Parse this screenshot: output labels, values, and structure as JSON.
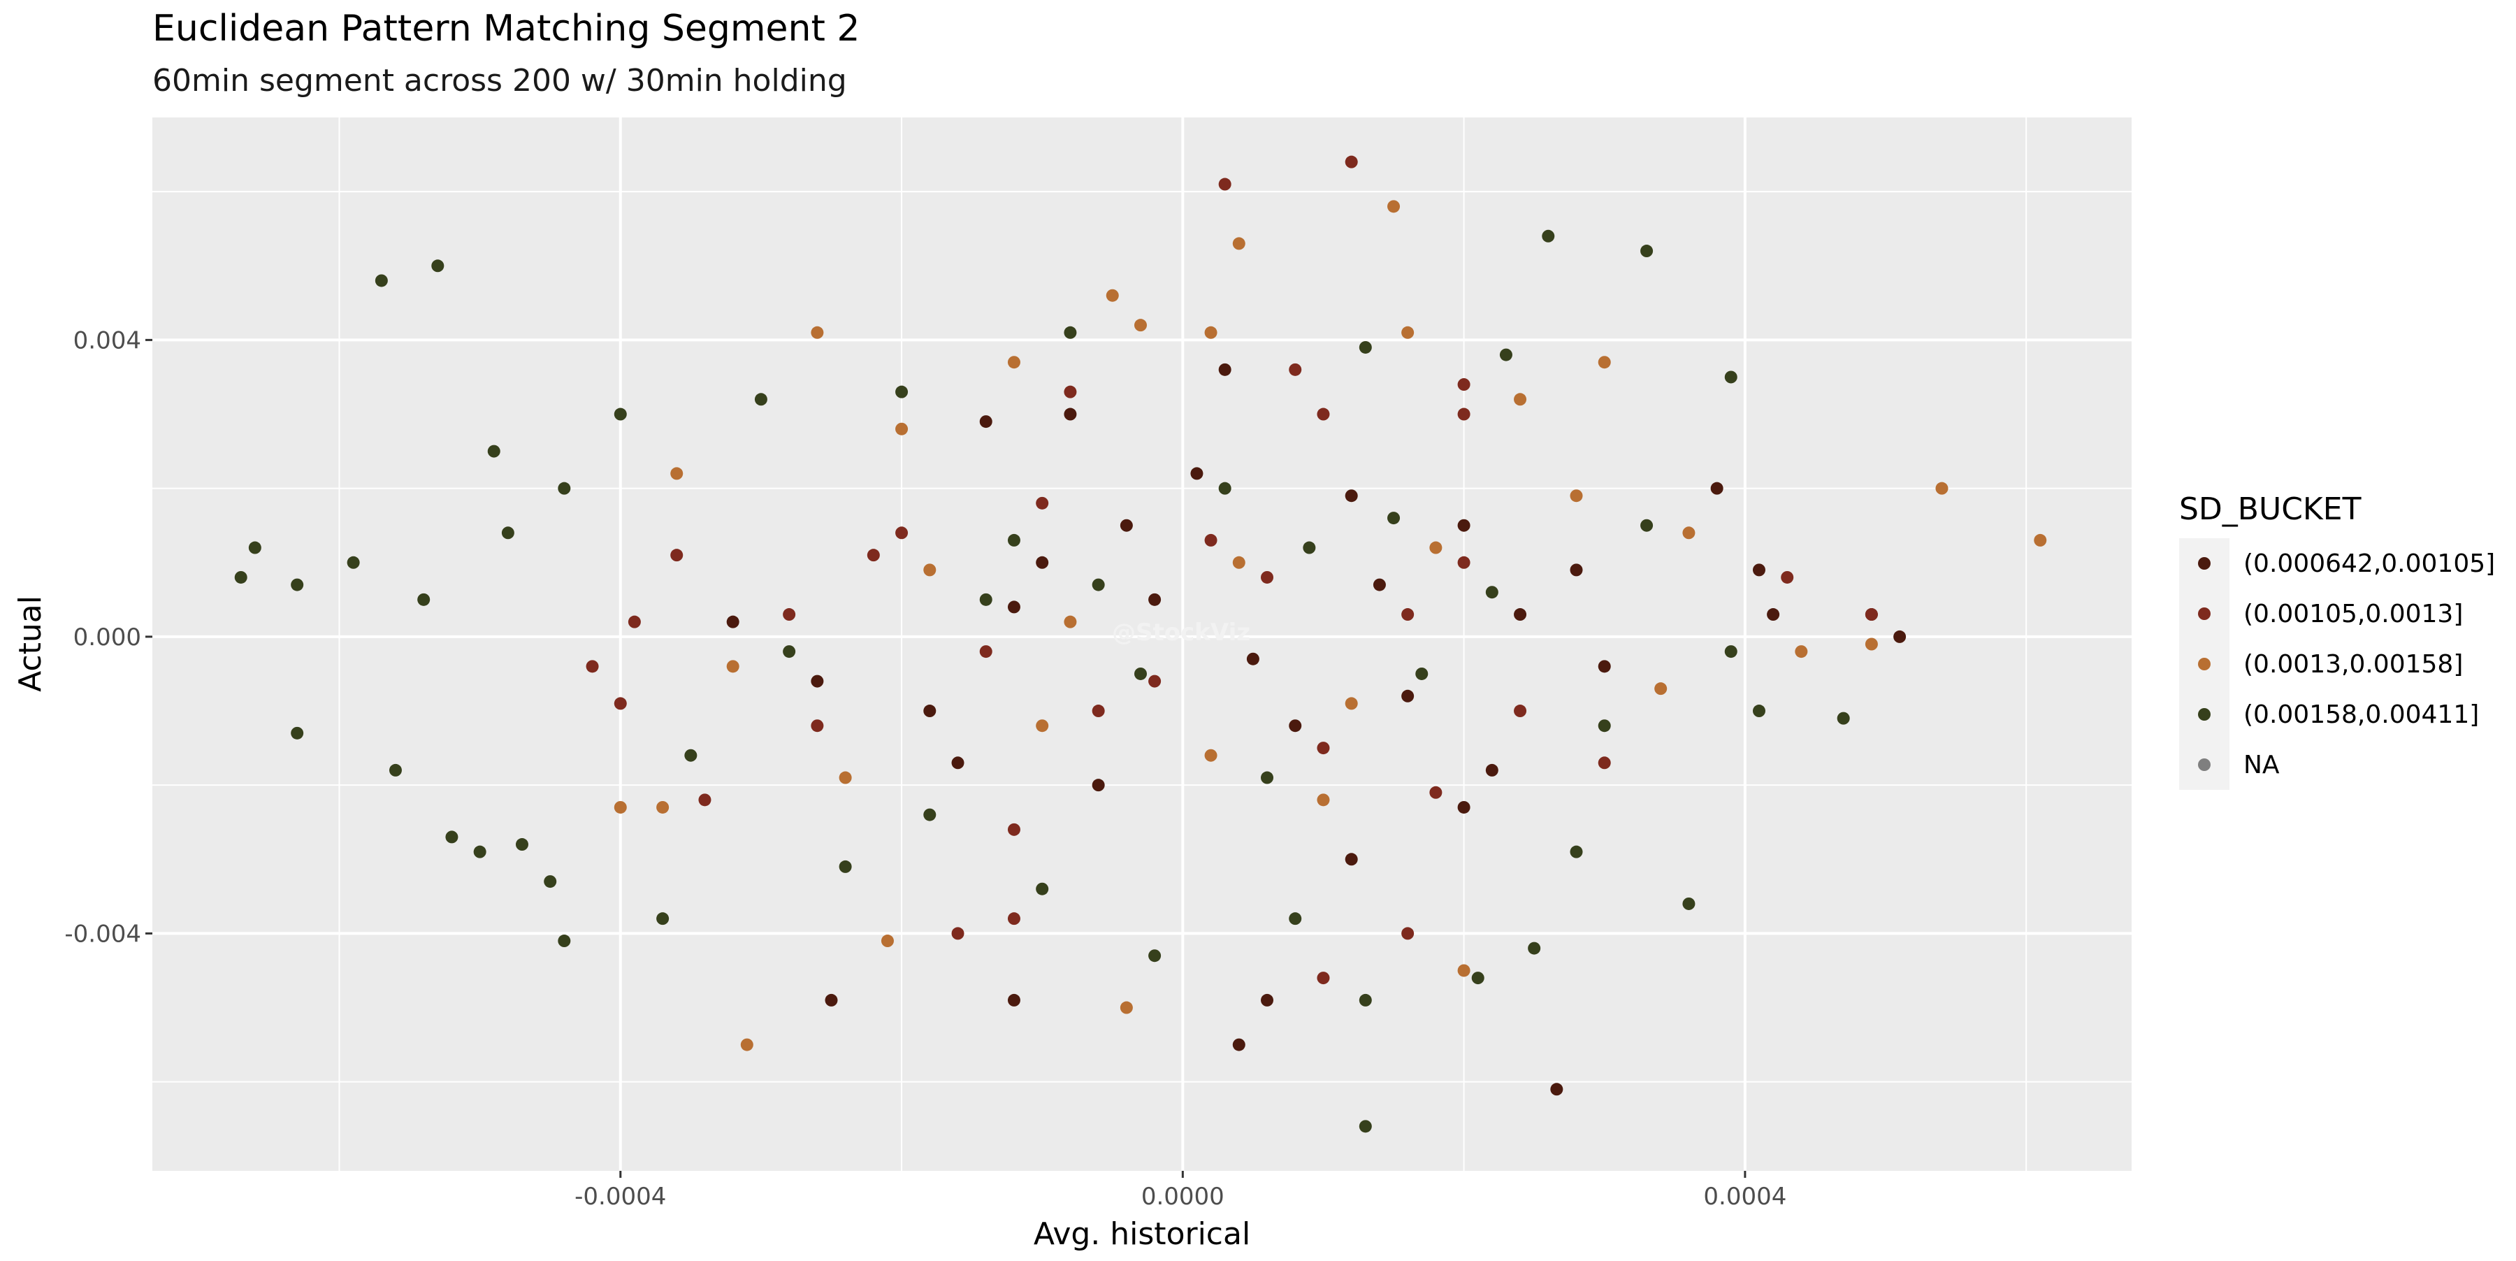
{
  "chart_data": {
    "type": "scatter",
    "title": "Euclidean Pattern Matching Segment 2",
    "subtitle": "60min segment across 200 w/ 30min holding",
    "xlabel": "Avg. historical",
    "ylabel": "Actual",
    "watermark": "@StockViz",
    "xlim": [
      -0.000733,
      0.000675
    ],
    "ylim": [
      -0.0072,
      0.007
    ],
    "x_ticks": [
      {
        "value": -0.0004,
        "label": "-0.0004"
      },
      {
        "value": 0.0,
        "label": "0.0000"
      },
      {
        "value": 0.0004,
        "label": "0.0004"
      }
    ],
    "y_ticks": [
      {
        "value": -0.004,
        "label": "-0.004"
      },
      {
        "value": 0.0,
        "label": "0.000"
      },
      {
        "value": 0.004,
        "label": "0.004"
      }
    ],
    "grid": true,
    "panel_background": "#ebebeb",
    "legend": {
      "title": "SD_BUCKET",
      "placement": "right",
      "entries": [
        {
          "label": "(0.000642,0.00105]",
          "color": "#4b1a0e"
        },
        {
          "label": "(0.00105,0.0013]",
          "color": "#7e2a1e"
        },
        {
          "label": "(0.0013,0.00158]",
          "color": "#b86f32"
        },
        {
          "label": "(0.00158,0.00411]",
          "color": "#36401c"
        },
        {
          "label": "NA",
          "color": "#7f7f7f"
        }
      ]
    },
    "series": [
      {
        "name": "(0.000642,0.00105]",
        "color": "#4b1a0e",
        "points": [
          [
            -0.00025,
            -0.0049
          ],
          [
            -0.00012,
            -0.0049
          ],
          [
            4e-05,
            -0.0055
          ],
          [
            6e-05,
            -0.0049
          ],
          [
            0.000266,
            -0.0061
          ],
          [
            0.00051,
            0.0
          ],
          [
            0.00049,
            0.0003
          ],
          [
            0.00041,
            0.0009
          ],
          [
            0.00042,
            0.0003
          ],
          [
            0.00038,
            0.002
          ],
          [
            -8e-05,
            0.003
          ],
          [
            3e-05,
            0.0036
          ],
          [
            -0.00014,
            0.0029
          ],
          [
            0.00012,
            0.0019
          ],
          [
            0.0002,
            0.0015
          ],
          [
            0.00028,
            0.0009
          ],
          [
            -4e-05,
            0.0015
          ],
          [
            -0.0001,
            0.001
          ],
          [
            8e-05,
            -0.0012
          ],
          [
            0.00016,
            -0.0008
          ],
          [
            0.00022,
            -0.0018
          ],
          [
            -0.00018,
            -0.001
          ],
          [
            -6e-05,
            -0.002
          ],
          [
            0.00012,
            -0.003
          ],
          [
            0.0003,
            -0.0004
          ],
          [
            -0.00032,
            0.0002
          ],
          [
            -0.00026,
            -0.0006
          ],
          [
            -2e-05,
            0.0005
          ],
          [
            5e-05,
            -0.0003
          ],
          [
            0.00014,
            0.0007
          ],
          [
            -0.00012,
            0.0004
          ],
          [
            0.00024,
            0.0003
          ],
          [
            0.0002,
            -0.0023
          ],
          [
            -0.00016,
            -0.0017
          ],
          [
            1e-05,
            0.0022
          ]
        ]
      },
      {
        "name": "(0.00105,0.0013]",
        "color": "#7e2a1e",
        "points": [
          [
            3e-05,
            0.0061
          ],
          [
            0.00012,
            0.0064
          ],
          [
            0.0002,
            0.0034
          ],
          [
            0.0002,
            0.003
          ],
          [
            0.00043,
            0.0008
          ],
          [
            0.00049,
            0.0003
          ],
          [
            -0.00039,
            0.0002
          ],
          [
            -0.00042,
            -0.0004
          ],
          [
            -0.0004,
            -0.0009
          ],
          [
            -0.00036,
            0.0011
          ],
          [
            -0.00016,
            -0.004
          ],
          [
            -0.00012,
            -0.0038
          ],
          [
            -0.00012,
            -0.0026
          ],
          [
            0.0001,
            -0.0046
          ],
          [
            0.00016,
            -0.004
          ],
          [
            0.0001,
            0.003
          ],
          [
            8e-05,
            0.0036
          ],
          [
            -8e-05,
            0.0033
          ],
          [
            0.0002,
            0.001
          ],
          [
            -0.00022,
            0.0011
          ],
          [
            -0.00026,
            -0.0012
          ],
          [
            -0.0002,
            0.0014
          ],
          [
            -6e-05,
            -0.001
          ],
          [
            0.00016,
            0.0003
          ],
          [
            0.0003,
            -0.0017
          ],
          [
            -0.00034,
            -0.0022
          ],
          [
            -0.00028,
            0.0003
          ],
          [
            6e-05,
            0.0008
          ],
          [
            0.0001,
            -0.0015
          ],
          [
            -2e-05,
            -0.0006
          ],
          [
            0.00018,
            -0.0021
          ],
          [
            -0.0001,
            0.0018
          ],
          [
            0.00024,
            -0.001
          ],
          [
            -0.00014,
            -0.0002
          ],
          [
            2e-05,
            0.0013
          ]
        ]
      },
      {
        "name": "(0.0013,0.00158]",
        "color": "#b86f32",
        "points": [
          [
            0.00015,
            0.0058
          ],
          [
            4e-05,
            0.0053
          ],
          [
            -5e-05,
            0.0046
          ],
          [
            0.00061,
            0.0013
          ],
          [
            0.00054,
            0.002
          ],
          [
            0.00044,
            -0.0002
          ],
          [
            0.00049,
            -0.0001
          ],
          [
            -0.00031,
            -0.0055
          ],
          [
            -0.00021,
            -0.0041
          ],
          [
            -4e-05,
            -0.005
          ],
          [
            -0.0004,
            -0.0023
          ],
          [
            -0.00037,
            -0.0023
          ],
          [
            -0.00026,
            0.0041
          ],
          [
            -3e-05,
            0.0042
          ],
          [
            2e-05,
            0.0041
          ],
          [
            0.0002,
            -0.0045
          ],
          [
            0.0003,
            0.0037
          ],
          [
            0.00036,
            0.0014
          ],
          [
            -0.00036,
            0.0022
          ],
          [
            -0.00032,
            -0.0004
          ],
          [
            -0.0002,
            0.0028
          ],
          [
            -0.00012,
            0.0037
          ],
          [
            0.00016,
            0.0041
          ],
          [
            0.0001,
            -0.0022
          ],
          [
            0.00024,
            0.0032
          ],
          [
            4e-05,
            0.001
          ],
          [
            -8e-05,
            0.0002
          ],
          [
            0.00012,
            -0.0009
          ],
          [
            -0.00018,
            0.0009
          ],
          [
            0.00028,
            0.0019
          ],
          [
            2e-05,
            -0.0016
          ],
          [
            -0.0001,
            -0.0012
          ],
          [
            0.00018,
            0.0012
          ],
          [
            -0.00024,
            -0.0019
          ],
          [
            0.00034,
            -0.0007
          ]
        ]
      },
      {
        "name": "(0.00158,0.00411]",
        "color": "#36401c",
        "points": [
          [
            -0.00057,
            0.0048
          ],
          [
            -0.00053,
            0.005
          ],
          [
            0.00026,
            0.0054
          ],
          [
            0.00033,
            0.0052
          ],
          [
            0.00039,
            0.0035
          ],
          [
            -0.00067,
            0.0008
          ],
          [
            -0.00066,
            0.0012
          ],
          [
            -0.00063,
            0.0007
          ],
          [
            -0.00059,
            0.001
          ],
          [
            -0.00063,
            -0.0013
          ],
          [
            -0.00056,
            -0.0018
          ],
          [
            -0.00052,
            -0.0027
          ],
          [
            -0.0005,
            -0.0029
          ],
          [
            -0.00047,
            -0.0028
          ],
          [
            -0.00045,
            -0.0033
          ],
          [
            -0.00044,
            -0.0041
          ],
          [
            -0.00037,
            -0.0038
          ],
          [
            0.00013,
            -0.0066
          ],
          [
            0.00036,
            -0.0036
          ],
          [
            0.00047,
            -0.0011
          ],
          [
            0.00041,
            -0.001
          ],
          [
            0.00039,
            -0.0002
          ],
          [
            -0.00049,
            0.0025
          ],
          [
            -0.0004,
            0.003
          ],
          [
            -0.00044,
            0.002
          ],
          [
            -0.00054,
            0.0005
          ],
          [
            -0.00048,
            0.0014
          ],
          [
            -0.0003,
            0.0032
          ],
          [
            -0.0002,
            0.0033
          ],
          [
            -8e-05,
            0.0041
          ],
          [
            0.00013,
            0.0039
          ],
          [
            0.00023,
            0.0038
          ],
          [
            0.00013,
            -0.0049
          ],
          [
            0.00021,
            -0.0046
          ],
          [
            0.00025,
            -0.0042
          ],
          [
            -2e-05,
            -0.0043
          ],
          [
            8e-05,
            -0.0038
          ],
          [
            -0.0001,
            -0.0034
          ],
          [
            3e-05,
            0.002
          ],
          [
            -6e-05,
            0.0007
          ],
          [
            9e-05,
            0.0012
          ],
          [
            -0.00014,
            0.0005
          ],
          [
            0.00017,
            -0.0005
          ],
          [
            -3e-05,
            -0.0005
          ],
          [
            0.00022,
            0.0006
          ],
          [
            0.00028,
            -0.0029
          ],
          [
            0.0003,
            -0.0012
          ],
          [
            -0.00024,
            -0.0031
          ],
          [
            -0.00018,
            -0.0024
          ],
          [
            6e-05,
            -0.0019
          ],
          [
            -0.00012,
            0.0013
          ],
          [
            0.00015,
            0.0016
          ],
          [
            -0.00035,
            -0.0016
          ],
          [
            0.00033,
            0.0015
          ],
          [
            -0.00028,
            -0.0002
          ]
        ]
      }
    ]
  }
}
